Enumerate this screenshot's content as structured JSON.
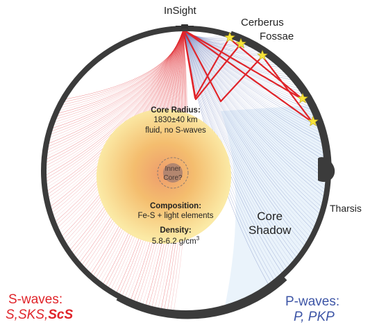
{
  "colors": {
    "s_wave": "#e0242a",
    "p_wave": "#3d55a6",
    "mantle_shell": "#3b3b3b",
    "core_light": "#fbeaa6",
    "core_mid": "#f4bd6e",
    "core_dark": "#ee9c6c",
    "shadow_fill": "#eaf3fb",
    "inner_core": "#a88070",
    "star": "#f7e43a"
  },
  "labels": {
    "insight": "InSight",
    "cerberus_line1": "Cerberus",
    "cerberus_line2": "Fossae",
    "tharsis": "Tharsis",
    "core_shadow_line1": "Core",
    "core_shadow_line2": "Shadow",
    "inner_core_line1": "Inner",
    "inner_core_line2": "Core?"
  },
  "core_info": {
    "radius_title": "Core Radius:",
    "radius_value": "1830±40 km",
    "radius_note": "fluid, no S-waves",
    "composition_title": "Composition:",
    "composition_value": "Fe-S + light elements",
    "density_title": "Density:",
    "density_value": "5.8-6.2 g/cm",
    "density_unit_sup": "3"
  },
  "legend": {
    "s_title": "S-waves:",
    "s_items_plain": "S,SKS,",
    "s_items_bold": "ScS",
    "p_title": "P-waves:",
    "p_items": "P, PKP"
  },
  "icons": [
    "lander-icon",
    "star-icon"
  ]
}
